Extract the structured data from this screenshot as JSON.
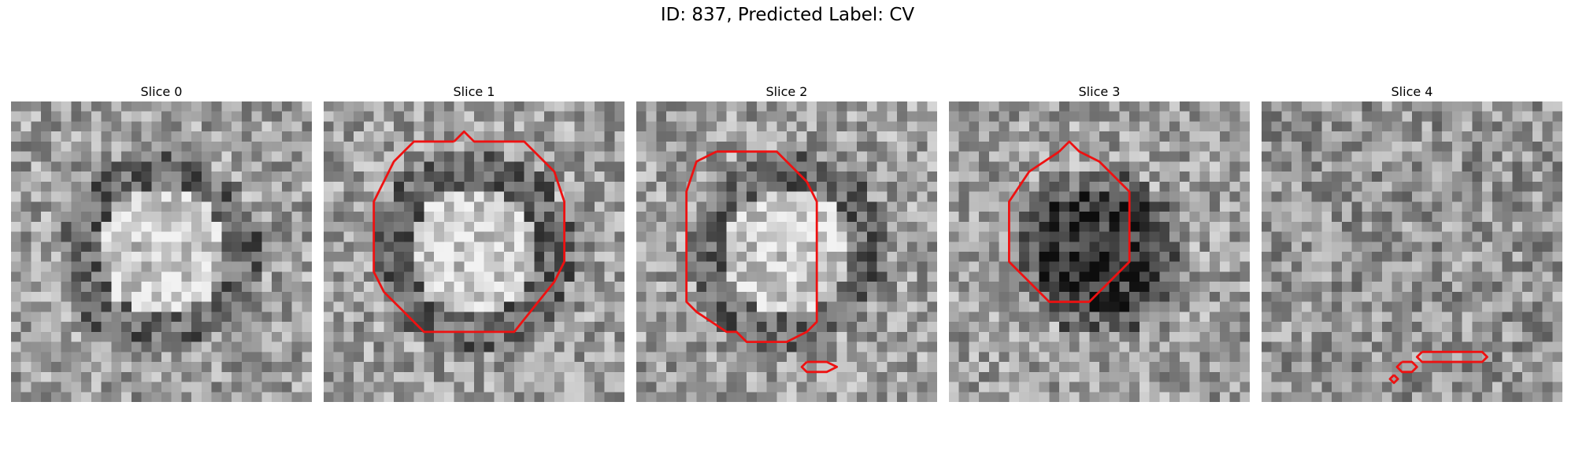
{
  "title": "ID: 837, Predicted Label: CV",
  "panels": [
    {
      "title": "Slice 0",
      "pattern": "ring-bright-center",
      "seed": 11,
      "contours": []
    },
    {
      "title": "Slice 1",
      "pattern": "ring-bright-center",
      "seed": 23,
      "contours": [
        [
          [
            13,
            4
          ],
          [
            14,
            3
          ],
          [
            15,
            4
          ],
          [
            20,
            4
          ],
          [
            23,
            7
          ],
          [
            24,
            10
          ],
          [
            24,
            16
          ],
          [
            23,
            18
          ],
          [
            19,
            23
          ],
          [
            10,
            23
          ],
          [
            6,
            19
          ],
          [
            5,
            17
          ],
          [
            5,
            10
          ],
          [
            7,
            6
          ],
          [
            9,
            4
          ],
          [
            13,
            4
          ]
        ]
      ]
    },
    {
      "title": "Slice 2",
      "pattern": "ring-bright-center",
      "seed": 37,
      "contours": [
        [
          [
            8,
            5
          ],
          [
            11,
            5
          ],
          [
            14,
            5
          ],
          [
            15,
            6
          ],
          [
            17,
            8
          ],
          [
            18,
            10
          ],
          [
            18,
            15
          ],
          [
            18,
            22
          ],
          [
            17,
            23
          ],
          [
            15,
            24
          ],
          [
            11,
            24
          ],
          [
            10,
            23
          ],
          [
            9,
            23
          ],
          [
            6,
            21
          ],
          [
            5,
            20
          ],
          [
            5,
            9
          ],
          [
            6,
            6
          ],
          [
            8,
            5
          ]
        ],
        [
          [
            17,
            26
          ],
          [
            19,
            26
          ],
          [
            20,
            26.5
          ],
          [
            19,
            27
          ],
          [
            17,
            27
          ],
          [
            16.5,
            26.5
          ],
          [
            17,
            26
          ]
        ]
      ]
    },
    {
      "title": "Slice 3",
      "pattern": "dark-blob",
      "seed": 53,
      "contours": [
        [
          [
            11,
            5
          ],
          [
            12,
            4
          ],
          [
            13,
            5
          ],
          [
            15,
            6
          ],
          [
            18,
            9
          ],
          [
            18,
            16
          ],
          [
            16,
            18
          ],
          [
            14,
            20
          ],
          [
            10,
            20
          ],
          [
            7,
            17
          ],
          [
            6,
            16
          ],
          [
            6,
            10
          ],
          [
            8,
            7
          ],
          [
            11,
            5
          ]
        ]
      ]
    },
    {
      "title": "Slice 4",
      "pattern": "noise",
      "seed": 71,
      "contours": [
        [
          [
            16,
            25
          ],
          [
            22,
            25
          ],
          [
            22.5,
            25.5
          ],
          [
            22,
            26
          ],
          [
            16,
            26
          ],
          [
            15.5,
            25.5
          ],
          [
            16,
            25
          ]
        ],
        [
          [
            14,
            26
          ],
          [
            15,
            26
          ],
          [
            15.5,
            26.5
          ],
          [
            15,
            27
          ],
          [
            14,
            27
          ],
          [
            13.5,
            26.5
          ],
          [
            14,
            26
          ]
        ],
        [
          [
            13.2,
            27.3
          ],
          [
            13.6,
            27.7
          ],
          [
            13.2,
            28.1
          ],
          [
            12.8,
            27.7
          ],
          [
            13.2,
            27.3
          ]
        ]
      ]
    }
  ],
  "colors": {
    "contour": "#ee1111"
  }
}
